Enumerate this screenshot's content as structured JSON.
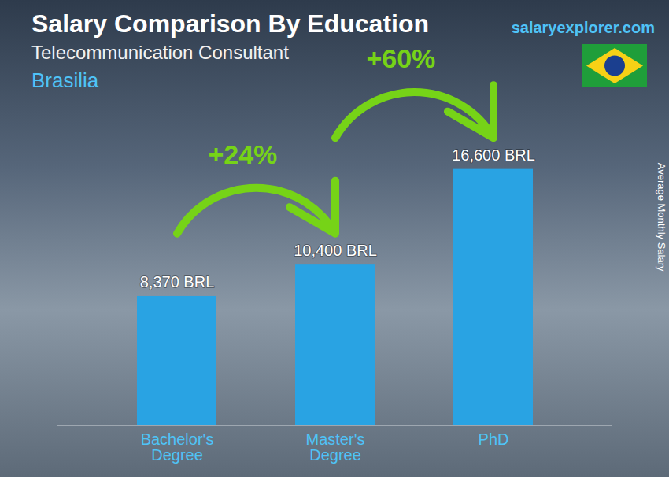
{
  "chart_data": {
    "type": "bar",
    "title": "Salary Comparison By Education",
    "subtitle": "Telecommunication Consultant",
    "location": "Brasilia",
    "source": "salaryexplorer.com",
    "ylabel": "Average Monthly Salary",
    "categories": [
      "Bachelor's Degree",
      "Master's Degree",
      "PhD"
    ],
    "values": [
      8370,
      10400,
      16600
    ],
    "value_labels": [
      "8,370 BRL",
      "10,400 BRL",
      "16,600 BRL"
    ],
    "data_labels": true,
    "color": "#29a3e3",
    "ylim": [
      0,
      20000
    ],
    "yticks": [],
    "tick_labels": "x",
    "annotations": [
      {
        "text": "+24%",
        "from": "Bachelor's Degree",
        "to": "Master's Degree"
      },
      {
        "text": "+60%",
        "from": "Master's Degree",
        "to": "PhD"
      }
    ]
  }
}
